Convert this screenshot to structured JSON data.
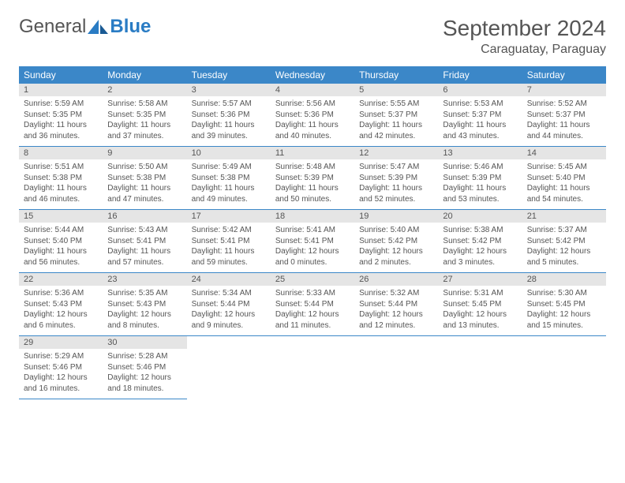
{
  "logo": {
    "text1": "General",
    "text2": "Blue"
  },
  "title": "September 2024",
  "location": "Caraguatay, Paraguay",
  "colors": {
    "header_bg": "#3b87c8",
    "daynum_bg": "#e5e5e5",
    "text": "#555555",
    "header_text": "#ffffff"
  },
  "weekdays": [
    "Sunday",
    "Monday",
    "Tuesday",
    "Wednesday",
    "Thursday",
    "Friday",
    "Saturday"
  ],
  "days": [
    {
      "n": "1",
      "sunrise": "Sunrise: 5:59 AM",
      "sunset": "Sunset: 5:35 PM",
      "daylight": "Daylight: 11 hours and 36 minutes."
    },
    {
      "n": "2",
      "sunrise": "Sunrise: 5:58 AM",
      "sunset": "Sunset: 5:35 PM",
      "daylight": "Daylight: 11 hours and 37 minutes."
    },
    {
      "n": "3",
      "sunrise": "Sunrise: 5:57 AM",
      "sunset": "Sunset: 5:36 PM",
      "daylight": "Daylight: 11 hours and 39 minutes."
    },
    {
      "n": "4",
      "sunrise": "Sunrise: 5:56 AM",
      "sunset": "Sunset: 5:36 PM",
      "daylight": "Daylight: 11 hours and 40 minutes."
    },
    {
      "n": "5",
      "sunrise": "Sunrise: 5:55 AM",
      "sunset": "Sunset: 5:37 PM",
      "daylight": "Daylight: 11 hours and 42 minutes."
    },
    {
      "n": "6",
      "sunrise": "Sunrise: 5:53 AM",
      "sunset": "Sunset: 5:37 PM",
      "daylight": "Daylight: 11 hours and 43 minutes."
    },
    {
      "n": "7",
      "sunrise": "Sunrise: 5:52 AM",
      "sunset": "Sunset: 5:37 PM",
      "daylight": "Daylight: 11 hours and 44 minutes."
    },
    {
      "n": "8",
      "sunrise": "Sunrise: 5:51 AM",
      "sunset": "Sunset: 5:38 PM",
      "daylight": "Daylight: 11 hours and 46 minutes."
    },
    {
      "n": "9",
      "sunrise": "Sunrise: 5:50 AM",
      "sunset": "Sunset: 5:38 PM",
      "daylight": "Daylight: 11 hours and 47 minutes."
    },
    {
      "n": "10",
      "sunrise": "Sunrise: 5:49 AM",
      "sunset": "Sunset: 5:38 PM",
      "daylight": "Daylight: 11 hours and 49 minutes."
    },
    {
      "n": "11",
      "sunrise": "Sunrise: 5:48 AM",
      "sunset": "Sunset: 5:39 PM",
      "daylight": "Daylight: 11 hours and 50 minutes."
    },
    {
      "n": "12",
      "sunrise": "Sunrise: 5:47 AM",
      "sunset": "Sunset: 5:39 PM",
      "daylight": "Daylight: 11 hours and 52 minutes."
    },
    {
      "n": "13",
      "sunrise": "Sunrise: 5:46 AM",
      "sunset": "Sunset: 5:39 PM",
      "daylight": "Daylight: 11 hours and 53 minutes."
    },
    {
      "n": "14",
      "sunrise": "Sunrise: 5:45 AM",
      "sunset": "Sunset: 5:40 PM",
      "daylight": "Daylight: 11 hours and 54 minutes."
    },
    {
      "n": "15",
      "sunrise": "Sunrise: 5:44 AM",
      "sunset": "Sunset: 5:40 PM",
      "daylight": "Daylight: 11 hours and 56 minutes."
    },
    {
      "n": "16",
      "sunrise": "Sunrise: 5:43 AM",
      "sunset": "Sunset: 5:41 PM",
      "daylight": "Daylight: 11 hours and 57 minutes."
    },
    {
      "n": "17",
      "sunrise": "Sunrise: 5:42 AM",
      "sunset": "Sunset: 5:41 PM",
      "daylight": "Daylight: 11 hours and 59 minutes."
    },
    {
      "n": "18",
      "sunrise": "Sunrise: 5:41 AM",
      "sunset": "Sunset: 5:41 PM",
      "daylight": "Daylight: 12 hours and 0 minutes."
    },
    {
      "n": "19",
      "sunrise": "Sunrise: 5:40 AM",
      "sunset": "Sunset: 5:42 PM",
      "daylight": "Daylight: 12 hours and 2 minutes."
    },
    {
      "n": "20",
      "sunrise": "Sunrise: 5:38 AM",
      "sunset": "Sunset: 5:42 PM",
      "daylight": "Daylight: 12 hours and 3 minutes."
    },
    {
      "n": "21",
      "sunrise": "Sunrise: 5:37 AM",
      "sunset": "Sunset: 5:42 PM",
      "daylight": "Daylight: 12 hours and 5 minutes."
    },
    {
      "n": "22",
      "sunrise": "Sunrise: 5:36 AM",
      "sunset": "Sunset: 5:43 PM",
      "daylight": "Daylight: 12 hours and 6 minutes."
    },
    {
      "n": "23",
      "sunrise": "Sunrise: 5:35 AM",
      "sunset": "Sunset: 5:43 PM",
      "daylight": "Daylight: 12 hours and 8 minutes."
    },
    {
      "n": "24",
      "sunrise": "Sunrise: 5:34 AM",
      "sunset": "Sunset: 5:44 PM",
      "daylight": "Daylight: 12 hours and 9 minutes."
    },
    {
      "n": "25",
      "sunrise": "Sunrise: 5:33 AM",
      "sunset": "Sunset: 5:44 PM",
      "daylight": "Daylight: 12 hours and 11 minutes."
    },
    {
      "n": "26",
      "sunrise": "Sunrise: 5:32 AM",
      "sunset": "Sunset: 5:44 PM",
      "daylight": "Daylight: 12 hours and 12 minutes."
    },
    {
      "n": "27",
      "sunrise": "Sunrise: 5:31 AM",
      "sunset": "Sunset: 5:45 PM",
      "daylight": "Daylight: 12 hours and 13 minutes."
    },
    {
      "n": "28",
      "sunrise": "Sunrise: 5:30 AM",
      "sunset": "Sunset: 5:45 PM",
      "daylight": "Daylight: 12 hours and 15 minutes."
    },
    {
      "n": "29",
      "sunrise": "Sunrise: 5:29 AM",
      "sunset": "Sunset: 5:46 PM",
      "daylight": "Daylight: 12 hours and 16 minutes."
    },
    {
      "n": "30",
      "sunrise": "Sunrise: 5:28 AM",
      "sunset": "Sunset: 5:46 PM",
      "daylight": "Daylight: 12 hours and 18 minutes."
    }
  ]
}
